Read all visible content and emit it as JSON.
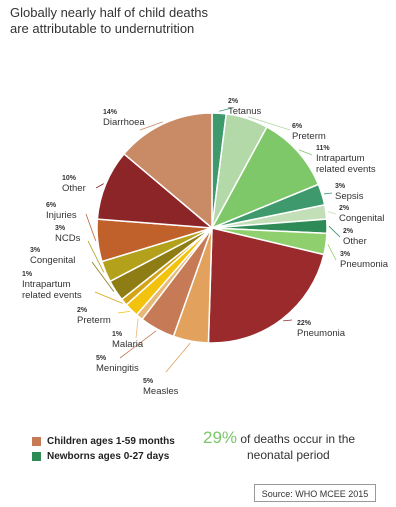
{
  "title": {
    "line1": "Globally nearly half of child deaths",
    "line2": "are attributable to undernutrition"
  },
  "chart_data": {
    "type": "pie",
    "slices": [
      {
        "group": "newborn",
        "label": "Tetanus",
        "pct": 2,
        "value_label": "2%",
        "color": "#3e9a6d"
      },
      {
        "group": "newborn",
        "label": "Preterm",
        "pct": 6,
        "value_label": "6%",
        "color": "#b3d9a8"
      },
      {
        "group": "newborn",
        "label": "Intrapartum related events",
        "pct": 11,
        "value_label": "11%",
        "color": "#7ec86a"
      },
      {
        "group": "newborn",
        "label": "Sepsis",
        "pct": 3,
        "value_label": "3%",
        "color": "#3e9a6d"
      },
      {
        "group": "newborn",
        "label": "Congenital",
        "pct": 2,
        "value_label": "2%",
        "color": "#c2dfb8"
      },
      {
        "group": "newborn",
        "label": "Other",
        "pct": 2,
        "value_label": "2%",
        "color": "#2e8b57"
      },
      {
        "group": "newborn",
        "label": "Pneumonia",
        "pct": 3,
        "value_label": "3%",
        "color": "#8fcf6e"
      },
      {
        "group": "child",
        "label": "Pneumonia",
        "pct": 22,
        "value_label": "22%",
        "color": "#9b2a2c"
      },
      {
        "group": "child",
        "label": "Measles",
        "pct": 5,
        "value_label": "5%",
        "color": "#e2a25e"
      },
      {
        "group": "child",
        "label": "Meningitis",
        "pct": 5,
        "value_label": "5%",
        "color": "#c67a55"
      },
      {
        "group": "child",
        "label": "Malaria",
        "pct": 1,
        "value_label": "1%",
        "color": "#e8b878"
      },
      {
        "group": "child",
        "label": "Preterm",
        "pct": 2,
        "value_label": "2%",
        "color": "#f2c20c"
      },
      {
        "group": "child",
        "label": "Intrapartum related events",
        "pct": 1,
        "value_label": "1%",
        "color": "#d4a417"
      },
      {
        "group": "child",
        "label": "Congenital",
        "pct": 3,
        "value_label": "3%",
        "color": "#8e7d15"
      },
      {
        "group": "child",
        "label": "NCDs",
        "pct": 3,
        "value_label": "3%",
        "color": "#b3a01b"
      },
      {
        "group": "child",
        "label": "Injuries",
        "pct": 6,
        "value_label": "6%",
        "color": "#c0602a"
      },
      {
        "group": "child",
        "label": "Other",
        "pct": 10,
        "value_label": "10%",
        "color": "#8b2528"
      },
      {
        "group": "child",
        "label": "Diarrhoea",
        "pct": 14,
        "value_label": "14%",
        "color": "#c98a66"
      }
    ],
    "legend": [
      {
        "label": "Children ages 1-59 months",
        "color": "#c67a55"
      },
      {
        "label": "Newborns ages 0-27 days",
        "color": "#2e8b57"
      }
    ]
  },
  "callout": {
    "value": "29%",
    "line1_rest": " of deaths occur in the",
    "line2": "neonatal period"
  },
  "source": "Source: WHO MCEE 2015"
}
